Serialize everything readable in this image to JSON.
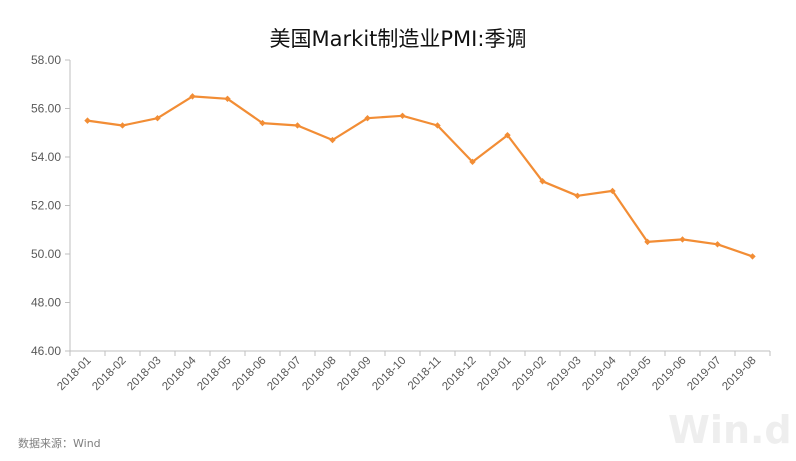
{
  "chart_data": {
    "type": "line",
    "title": "美国Markit制造业PMI:季调",
    "xlabel": "",
    "ylabel": "",
    "categories": [
      "2018-01",
      "2018-02",
      "2018-03",
      "2018-04",
      "2018-05",
      "2018-06",
      "2018-07",
      "2018-08",
      "2018-09",
      "2018-10",
      "2018-11",
      "2018-12",
      "2019-01",
      "2019-02",
      "2019-03",
      "2019-04",
      "2019-05",
      "2019-06",
      "2019-07",
      "2019-08"
    ],
    "series": [
      {
        "values": [
          55.5,
          55.3,
          55.6,
          56.5,
          56.4,
          55.4,
          55.3,
          54.7,
          55.6,
          55.7,
          55.3,
          53.8,
          54.9,
          53.0,
          52.4,
          52.6,
          50.5,
          50.6,
          50.4,
          49.9
        ],
        "color": "#f28d35"
      }
    ],
    "ylim": [
      46,
      58
    ],
    "yticks": [
      "46.00",
      "48.00",
      "50.00",
      "52.00",
      "54.00",
      "56.00",
      "58.00"
    ],
    "grid": false,
    "legend": "none"
  },
  "source": "数据来源：Wind",
  "watermark": "Win.d",
  "colors": {
    "line": "#f28d35",
    "axis": "#bfbfbf",
    "text": "#595959"
  }
}
